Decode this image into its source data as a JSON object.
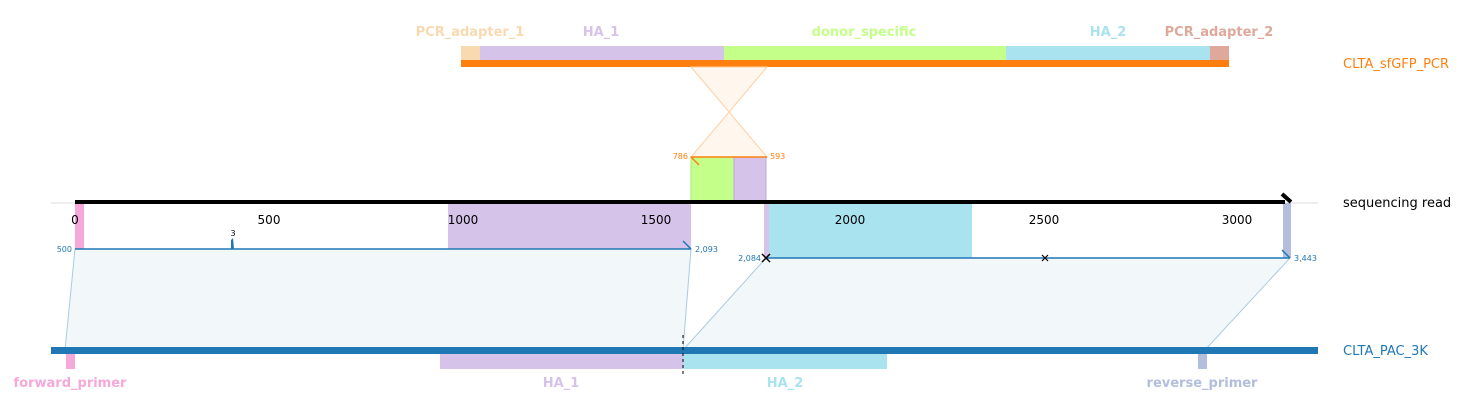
{
  "colors": {
    "pcr_adapter_1": "#f9d9b0",
    "ha_1": "#d6c3ea",
    "donor_specific": "#c4ff8a",
    "ha_2": "#a9e3ef",
    "pcr_adapter_2": "#dfa89b",
    "forward_primer": "#f6a8d9",
    "reverse_primer": "#b3bedc",
    "donor_track": "#ff7f0e",
    "reference_track": "#1f77b4",
    "read_track": "#000000",
    "crossover_fill": "#fff6ee",
    "alignment_fill": "#f2f7fa"
  },
  "donor": {
    "name": "CLTA_sfGFP_PCR",
    "features": [
      {
        "label": "PCR_adapter_1",
        "color_key": "pcr_adapter_1"
      },
      {
        "label": "HA_1",
        "color_key": "ha_1"
      },
      {
        "label": "donor_specific",
        "color_key": "donor_specific"
      },
      {
        "label": "HA_2",
        "color_key": "ha_2"
      },
      {
        "label": "PCR_adapter_2",
        "color_key": "pcr_adapter_2"
      }
    ],
    "insertion_labels": {
      "left": "786",
      "right": "593"
    }
  },
  "read": {
    "name": "sequencing read",
    "axis_ticks": [
      "0",
      "500",
      "1000",
      "1500",
      "2000",
      "2500",
      "3000"
    ],
    "alignment_1": {
      "start": "500",
      "end": "2,093",
      "indel": "3"
    },
    "alignment_2": {
      "start": "2,084",
      "end": "3,443"
    }
  },
  "reference": {
    "name": "CLTA_PAC_3K",
    "features": [
      {
        "label": "forward_primer",
        "color_key": "forward_primer"
      },
      {
        "label": "HA_1",
        "color_key": "ha_1"
      },
      {
        "label": "HA_2",
        "color_key": "ha_2"
      },
      {
        "label": "reverse_primer",
        "color_key": "reverse_primer"
      }
    ]
  }
}
